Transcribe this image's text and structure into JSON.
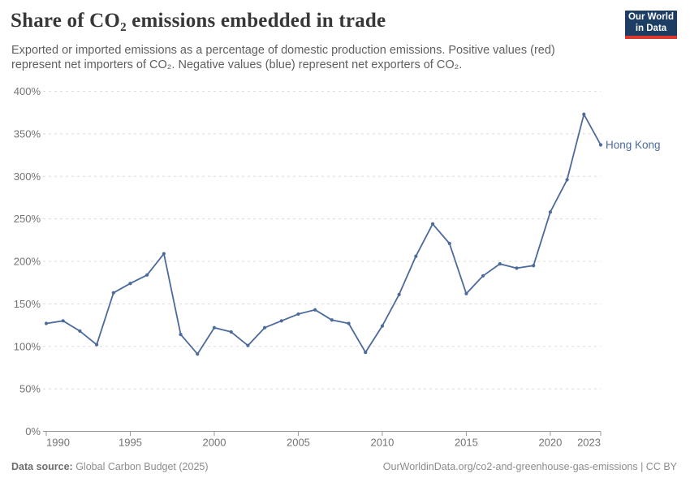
{
  "header": {
    "title": "Share of CO₂ emissions embedded in trade",
    "subtitle_line1": "Exported or imported emissions as a percentage of domestic production emissions. Positive values (red)",
    "subtitle_line2": "represent net importers of CO₂. Negative values (blue) represent net exporters of CO₂."
  },
  "logo": {
    "line1": "Our World",
    "line2": "in Data",
    "bg_color": "#1d3d63",
    "accent_color": "#dc3a2e"
  },
  "chart_data": {
    "type": "line",
    "title": "Share of CO₂ emissions embedded in trade",
    "x": [
      1990,
      1991,
      1992,
      1993,
      1994,
      1995,
      1996,
      1997,
      1998,
      1999,
      2000,
      2001,
      2002,
      2003,
      2004,
      2005,
      2006,
      2007,
      2008,
      2009,
      2010,
      2011,
      2012,
      2013,
      2014,
      2015,
      2016,
      2017,
      2018,
      2019,
      2020,
      2021,
      2022,
      2023
    ],
    "series": [
      {
        "name": "Hong Kong",
        "color": "#4c6a9c",
        "values": [
          127,
          130,
          118,
          102,
          163,
          174,
          184,
          209,
          114,
          91,
          122,
          117,
          101,
          122,
          130,
          138,
          143,
          131,
          127,
          93,
          124,
          161,
          206,
          244,
          221,
          162,
          183,
          197,
          192,
          195,
          258,
          296,
          373,
          337
        ]
      }
    ],
    "end_label": "Hong Kong",
    "x_ticks": [
      1990,
      1995,
      2000,
      2005,
      2010,
      2015,
      2020,
      2023
    ],
    "y_ticks": [
      0,
      50,
      100,
      150,
      200,
      250,
      300,
      350,
      400
    ],
    "y_suffix": "%",
    "xlim": [
      1990,
      2023
    ],
    "ylim": [
      0,
      400
    ],
    "grid": "horizontal-dashed",
    "legend_position": "end-of-line-label",
    "axis_color": "#999999",
    "grid_color": "#dcdcdc",
    "tick_label_color": "#737373"
  },
  "footer": {
    "source_label": "Data source:",
    "source_value": " Global Carbon Budget (2025)",
    "credit": "OurWorldinData.org/co2-and-greenhouse-gas-emissions | CC BY"
  }
}
